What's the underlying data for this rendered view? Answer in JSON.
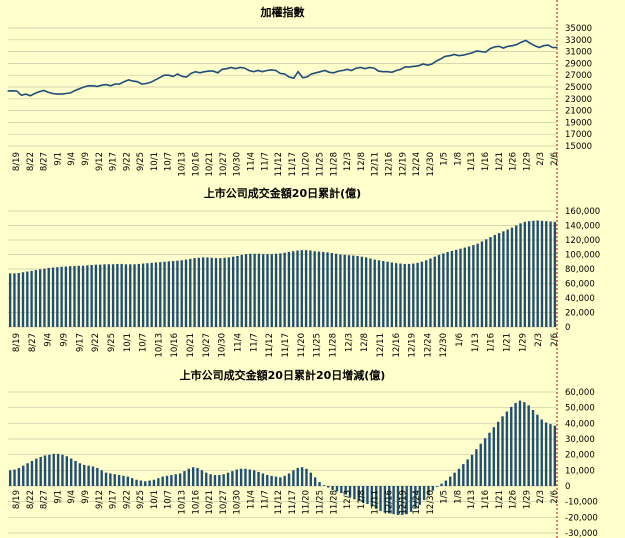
{
  "colors": {
    "background": "#ffffcc",
    "grid": "#c8c8a8",
    "series": "#1f4e79",
    "marker_line": "#c00000"
  },
  "chart_data": [
    {
      "type": "line",
      "title": "加權指數",
      "ylim": [
        15000,
        35000
      ],
      "yticks": [
        "35000",
        "33000",
        "31000",
        "29000",
        "27000",
        "25000",
        "23000",
        "21000",
        "19000",
        "17000",
        "15000"
      ],
      "xticks": [
        "8/19",
        "8/22",
        "8/27",
        "9/1",
        "9/4",
        "9/9",
        "9/12",
        "9/17",
        "9/22",
        "9/25",
        "10/1",
        "10/7",
        "10/13",
        "10/16",
        "10/21",
        "10/27",
        "10/30",
        "11/4",
        "11/7",
        "11/12",
        "11/17",
        "11/20",
        "11/25",
        "11/28",
        "12/3",
        "12/8",
        "12/11",
        "12/16",
        "12/19",
        "12/24",
        "12/30",
        "1/5",
        "1/8",
        "1/13",
        "1/16",
        "1/21",
        "1/26",
        "1/29",
        "2/3",
        "2/6"
      ],
      "values": [
        24300,
        24350,
        24300,
        23600,
        23800,
        23500,
        23900,
        24200,
        24400,
        24100,
        23900,
        23800,
        23800,
        23900,
        24000,
        24400,
        24700,
        25000,
        25200,
        25200,
        25100,
        25300,
        25400,
        25200,
        25500,
        25500,
        25900,
        26200,
        26000,
        25900,
        25500,
        25600,
        25800,
        26200,
        26600,
        27000,
        27000,
        26800,
        27200,
        26800,
        26700,
        27300,
        27600,
        27400,
        27600,
        27700,
        27700,
        27400,
        28000,
        28100,
        28300,
        28100,
        28300,
        28200,
        27800,
        27600,
        27800,
        27600,
        27800,
        27900,
        27800,
        27300,
        27200,
        26700,
        26500,
        27600,
        26600,
        26700,
        27200,
        27400,
        27600,
        27800,
        27500,
        27400,
        27700,
        27800,
        28000,
        27800,
        28200,
        28300,
        28100,
        28300,
        28200,
        27700,
        27600,
        27600,
        27500,
        27800,
        28000,
        28400,
        28400,
        28500,
        28600,
        28900,
        28700,
        28900,
        29400,
        29800,
        30200,
        30300,
        30500,
        30300,
        30400,
        30600,
        30800,
        31100,
        31000,
        30900,
        31500,
        31800,
        31900,
        31600,
        31900,
        32000,
        32200,
        32600,
        32900,
        32400,
        32000,
        31700,
        32000,
        32100,
        31700,
        31700
      ]
    },
    {
      "type": "bar",
      "title": "上市公司成交金額20日累計(億)",
      "ylim": [
        0,
        160000
      ],
      "yticks": [
        "160,000",
        "140,000",
        "120,000",
        "100,000",
        "80,000",
        "60,000",
        "40,000",
        "20,000",
        "0"
      ],
      "xticks": [
        "8/19",
        "8/27",
        "9/4",
        "9/9",
        "9/17",
        "9/22",
        "9/25",
        "10/1",
        "10/7",
        "10/13",
        "10/16",
        "10/21",
        "10/27",
        "10/30",
        "11/4",
        "11/7",
        "11/12",
        "11/17",
        "11/20",
        "11/25",
        "11/28",
        "12/3",
        "12/8",
        "12/11",
        "12/16",
        "12/19",
        "12/24",
        "12/30",
        "1/6",
        "1/13",
        "1/16",
        "1/21",
        "1/29",
        "2/3",
        "2/6"
      ],
      "values": [
        74000,
        74000,
        74500,
        75500,
        76500,
        77500,
        78500,
        79500,
        80500,
        81500,
        82000,
        82500,
        83000,
        83500,
        84000,
        84000,
        84500,
        84500,
        85000,
        85500,
        86000,
        86000,
        86500,
        86500,
        86500,
        87000,
        87000,
        86500,
        86500,
        86500,
        87000,
        87500,
        88000,
        88500,
        89000,
        89500,
        90000,
        90500,
        91000,
        91500,
        92000,
        93000,
        94000,
        95000,
        95500,
        96000,
        96000,
        95500,
        95000,
        95000,
        95500,
        96000,
        97000,
        98000,
        99500,
        100500,
        101000,
        101000,
        101000,
        100500,
        100500,
        100500,
        101000,
        101500,
        102500,
        103500,
        104500,
        105500,
        106000,
        106000,
        105500,
        104500,
        104000,
        103500,
        103000,
        102000,
        101000,
        100000,
        99500,
        99000,
        98500,
        98000,
        97000,
        96000,
        94500,
        93000,
        92000,
        91000,
        90000,
        89000,
        88000,
        87500,
        87000,
        87000,
        87500,
        88500,
        90000,
        92000,
        94500,
        97000,
        99500,
        101500,
        103500,
        105000,
        106500,
        108000,
        109500,
        111000,
        113000,
        115000,
        118000,
        121000,
        124000,
        127000,
        129500,
        132000,
        134500,
        137000,
        140000,
        143000,
        145000,
        146000,
        146500,
        147000,
        146500,
        146000,
        145500,
        145000
      ]
    },
    {
      "type": "bar",
      "title": "上市公司成交金額20日累計20日增減(億)",
      "ylim": [
        -30000,
        60000
      ],
      "yticks": [
        "60,000",
        "50,000",
        "40,000",
        "30,000",
        "20,000",
        "10,000",
        "0",
        "-10,000",
        "-20,000",
        "-30,000"
      ],
      "xticks": [
        "8/19",
        "8/22",
        "8/27",
        "9/1",
        "9/4",
        "9/9",
        "9/12",
        "9/17",
        "9/22",
        "9/25",
        "10/1",
        "10/7",
        "10/13",
        "10/16",
        "10/21",
        "10/27",
        "10/30",
        "11/4",
        "11/7",
        "11/12",
        "11/17",
        "11/20",
        "11/25",
        "11/28",
        "12/3",
        "12/8",
        "12/11",
        "12/16",
        "12/19",
        "12/24",
        "12/30",
        "1/5",
        "1/8",
        "1/13",
        "1/16",
        "1/21",
        "1/26",
        "1/29",
        "2/3",
        "2/6"
      ],
      "values": [
        10000,
        10500,
        11500,
        13000,
        14500,
        16000,
        17500,
        18500,
        19500,
        20000,
        20500,
        20500,
        20000,
        19000,
        17500,
        16000,
        14500,
        13500,
        13000,
        12500,
        11500,
        10000,
        8500,
        8000,
        7500,
        7000,
        6500,
        6000,
        5000,
        4000,
        3500,
        3000,
        3500,
        4000,
        5000,
        6000,
        6500,
        7000,
        7500,
        8000,
        9500,
        11000,
        12000,
        11500,
        10000,
        8500,
        7500,
        7000,
        7000,
        7500,
        8500,
        9500,
        10500,
        11000,
        11000,
        10500,
        10000,
        9000,
        8000,
        7000,
        6500,
        6000,
        5500,
        6500,
        8000,
        10000,
        11500,
        12000,
        11000,
        8500,
        5500,
        2500,
        500,
        -1000,
        -2500,
        -3500,
        -4500,
        -5500,
        -7000,
        -8500,
        -9500,
        -10500,
        -11500,
        -13000,
        -14500,
        -16000,
        -17000,
        -17500,
        -18000,
        -18500,
        -18500,
        -18000,
        -16500,
        -14500,
        -12000,
        -9000,
        -6000,
        -3000,
        -500,
        1500,
        3500,
        6000,
        8500,
        11000,
        14000,
        17000,
        20000,
        23500,
        27000,
        30500,
        34000,
        37500,
        41000,
        44500,
        47500,
        50500,
        53000,
        54500,
        53500,
        51500,
        48500,
        45500,
        42500,
        40500,
        39500,
        38500
      ]
    }
  ]
}
